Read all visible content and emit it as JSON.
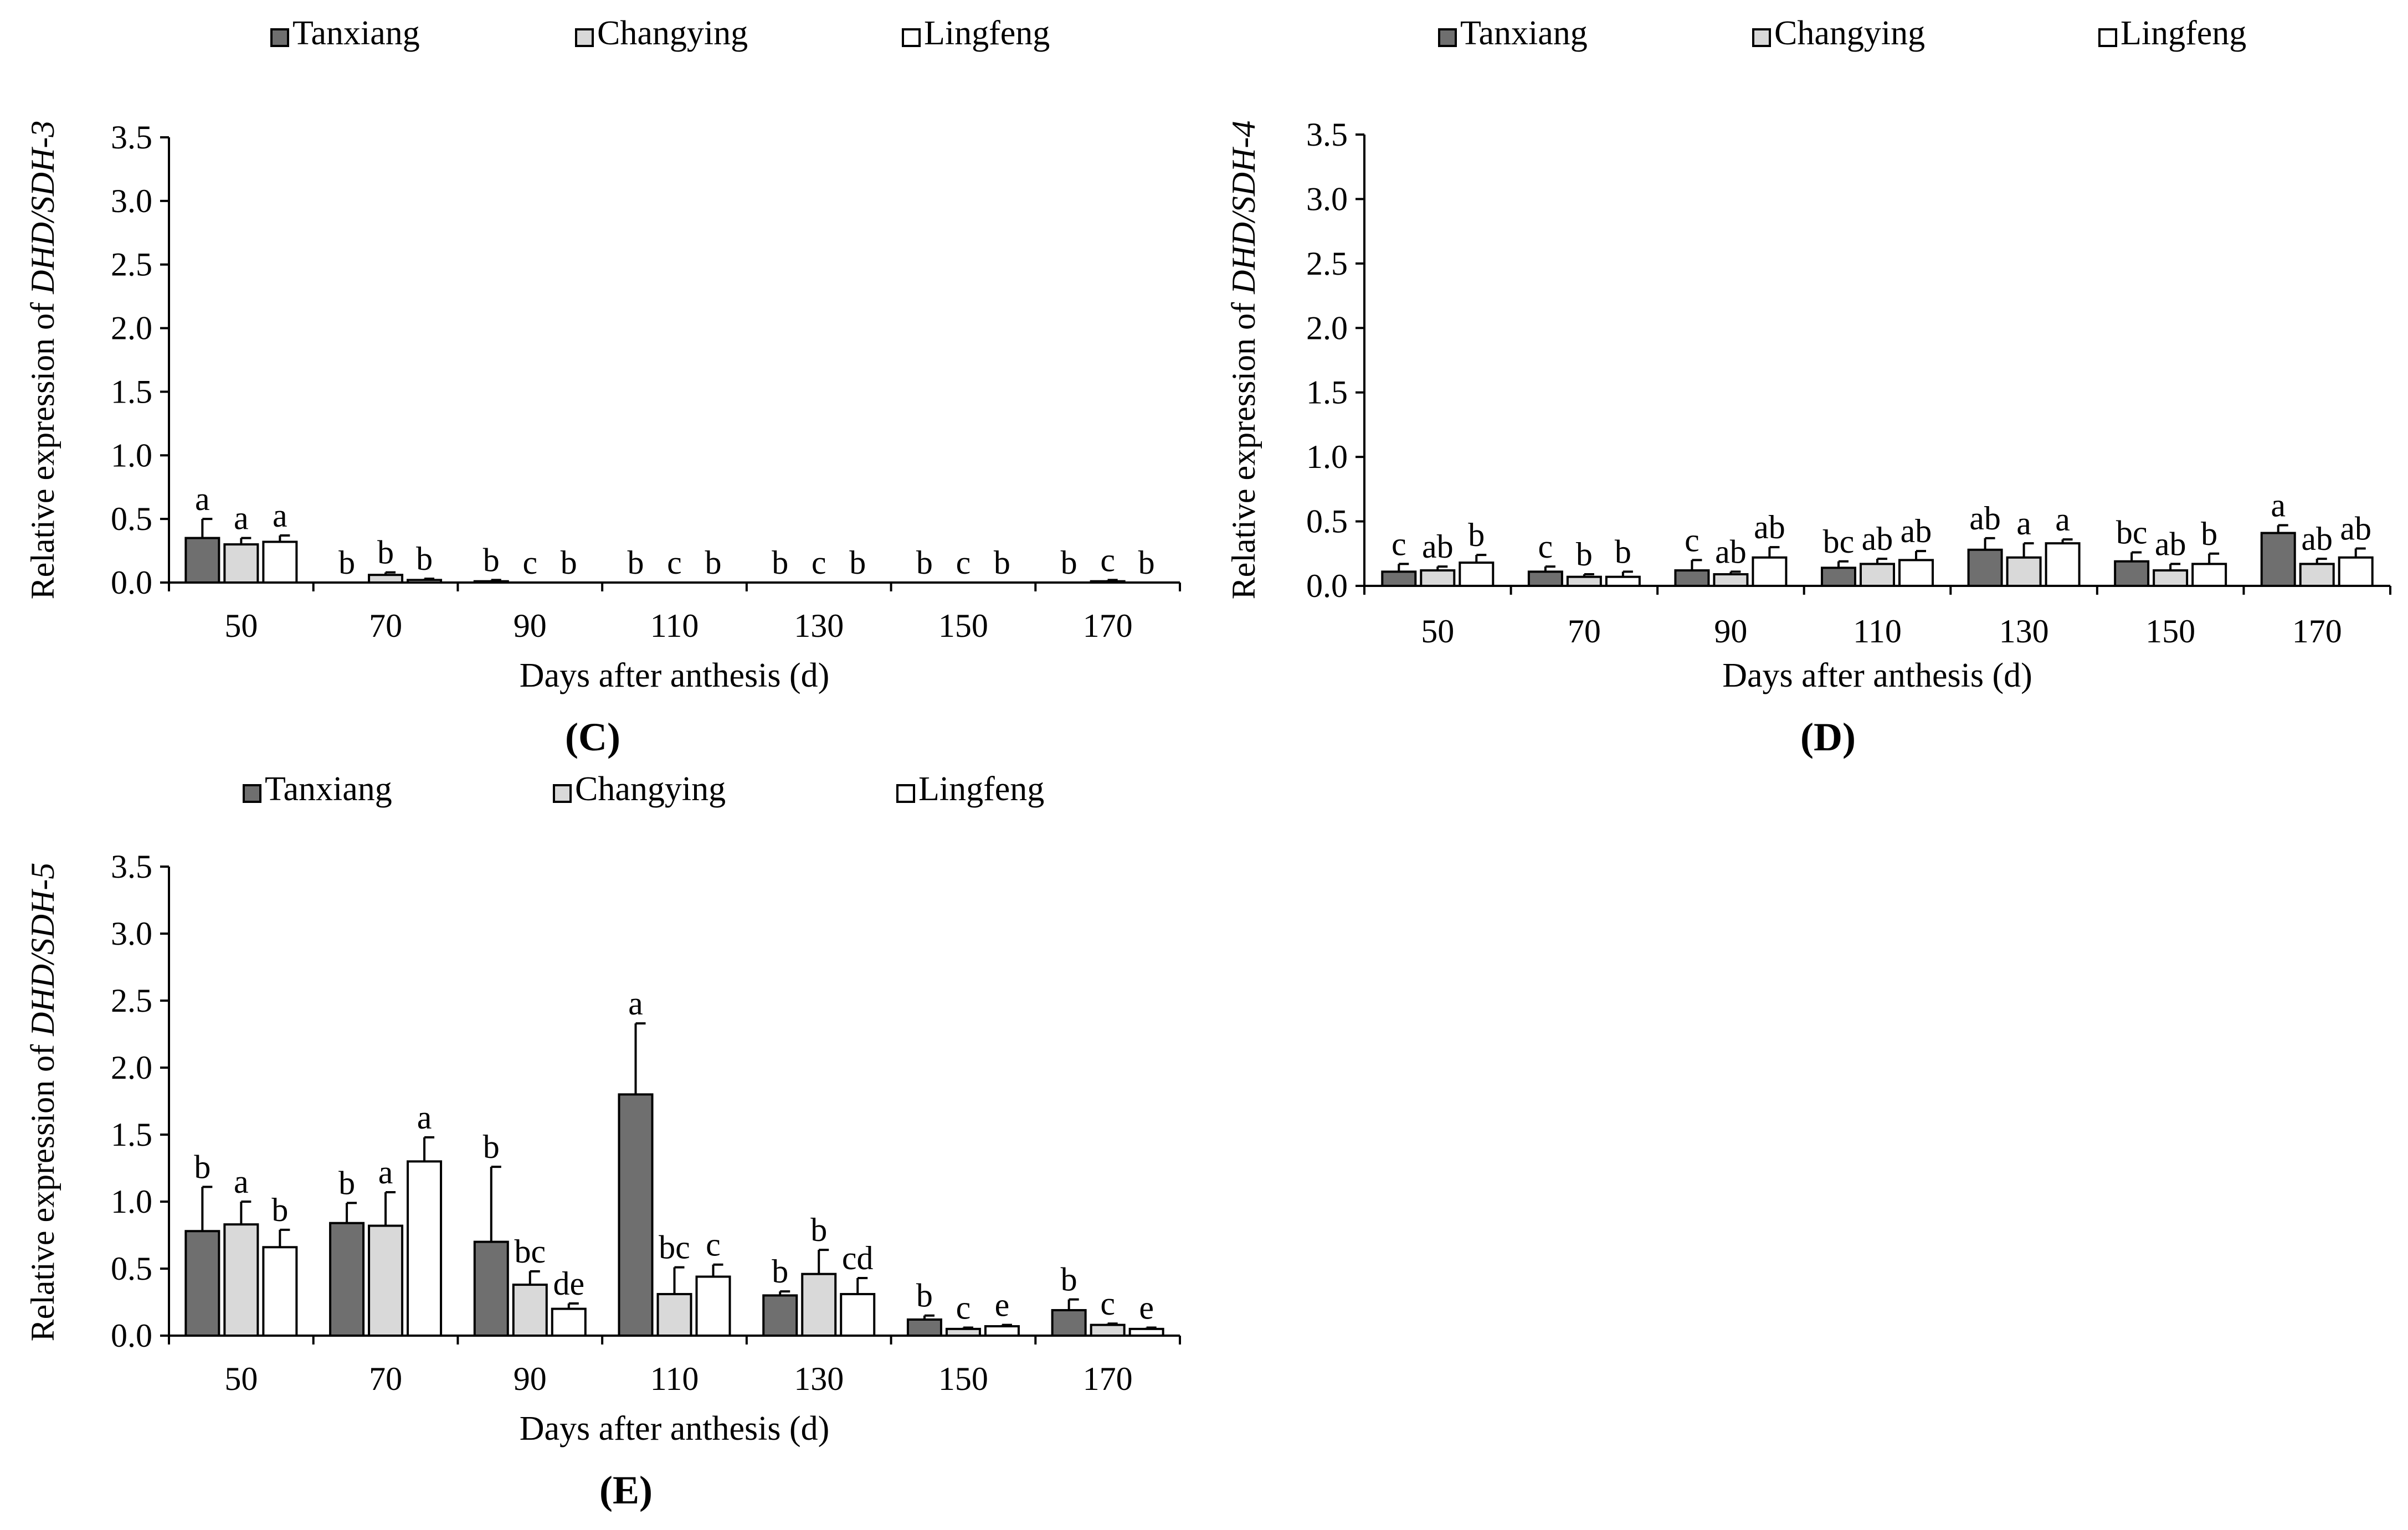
{
  "figure": {
    "colors": {
      "Tanxiang": "#6f6f6f",
      "Changying": "#d9d9d9",
      "Lingfeng": "#ffffff",
      "axis": "#000000"
    }
  },
  "chart_data": [
    {
      "panel": "C",
      "panel_label": "(C)",
      "type": "bar",
      "title": "",
      "ylabel": "Relative expression of ",
      "ylabel_gene": "DHD/SDH-3",
      "xlabel": "Days after anthesis (d)",
      "categories": [
        "50",
        "70",
        "90",
        "110",
        "130",
        "150",
        "170"
      ],
      "ylim": [
        0,
        3.5
      ],
      "yticks": [
        "0.0",
        "0.5",
        "1.0",
        "1.5",
        "2.0",
        "2.5",
        "3.0",
        "3.5"
      ],
      "legend": [
        "Tanxiang",
        "Changying",
        "Lingfeng"
      ],
      "series": [
        {
          "name": "Tanxiang",
          "values": [
            0.35,
            0.0,
            0.01,
            0.0,
            0.0,
            0.0,
            0.0
          ],
          "errors": [
            0.15,
            0.0,
            0.01,
            0.0,
            0.0,
            0.0,
            0.0
          ],
          "letters": [
            "a",
            "b",
            "b",
            "b",
            "b",
            "b",
            "b"
          ]
        },
        {
          "name": "Changying",
          "values": [
            0.3,
            0.06,
            0.0,
            0.0,
            0.0,
            0.0,
            0.01
          ],
          "errors": [
            0.05,
            0.02,
            0.0,
            0.0,
            0.0,
            0.0,
            0.01
          ],
          "letters": [
            "a",
            "b",
            "c",
            "c",
            "c",
            "c",
            "c"
          ]
        },
        {
          "name": "Lingfeng",
          "values": [
            0.32,
            0.02,
            0.0,
            0.0,
            0.0,
            0.0,
            0.0
          ],
          "errors": [
            0.05,
            0.01,
            0.0,
            0.0,
            0.0,
            0.0,
            0.0
          ],
          "letters": [
            "a",
            "b",
            "b",
            "b",
            "b",
            "b",
            "b"
          ]
        }
      ]
    },
    {
      "panel": "D",
      "panel_label": "(D)",
      "type": "bar",
      "title": "",
      "ylabel": "Relative expression of ",
      "ylabel_gene": "DHD/SDH-4",
      "xlabel": "Days after anthesis (d)",
      "categories": [
        "50",
        "70",
        "90",
        "110",
        "130",
        "150",
        "170"
      ],
      "ylim": [
        0,
        3.5
      ],
      "yticks": [
        "0.0",
        "0.5",
        "1.0",
        "1.5",
        "2.0",
        "2.5",
        "3.0",
        "3.5"
      ],
      "legend": [
        "Tanxiang",
        "Changying",
        "Lingfeng"
      ],
      "series": [
        {
          "name": "Tanxiang",
          "values": [
            0.11,
            0.11,
            0.12,
            0.14,
            0.28,
            0.19,
            0.41
          ],
          "errors": [
            0.06,
            0.04,
            0.08,
            0.05,
            0.09,
            0.07,
            0.06
          ],
          "letters": [
            "c",
            "c",
            "c",
            "bc",
            "ab",
            "bc",
            "a"
          ]
        },
        {
          "name": "Changying",
          "values": [
            0.12,
            0.07,
            0.09,
            0.17,
            0.22,
            0.12,
            0.17
          ],
          "errors": [
            0.03,
            0.02,
            0.02,
            0.04,
            0.11,
            0.05,
            0.04
          ],
          "letters": [
            "ab",
            "b",
            "ab",
            "ab",
            "a",
            "ab",
            "ab"
          ]
        },
        {
          "name": "Lingfeng",
          "values": [
            0.18,
            0.07,
            0.22,
            0.2,
            0.33,
            0.17,
            0.22
          ],
          "errors": [
            0.06,
            0.04,
            0.08,
            0.07,
            0.03,
            0.08,
            0.07
          ],
          "letters": [
            "b",
            "b",
            "ab",
            "ab",
            "a",
            "b",
            "ab"
          ]
        }
      ]
    },
    {
      "panel": "E",
      "panel_label": "(E)",
      "type": "bar",
      "title": "",
      "ylabel": "Relative expression of ",
      "ylabel_gene": "DHD/SDH-5",
      "xlabel": "Days after anthesis (d)",
      "categories": [
        "50",
        "70",
        "90",
        "110",
        "130",
        "150",
        "170"
      ],
      "ylim": [
        0,
        3.5
      ],
      "yticks": [
        "0.0",
        "0.5",
        "1.0",
        "1.5",
        "2.0",
        "2.5",
        "3.0",
        "3.5"
      ],
      "legend": [
        "Tanxiang",
        "Changying",
        "Lingfeng"
      ],
      "series": [
        {
          "name": "Tanxiang",
          "values": [
            0.78,
            0.84,
            0.7,
            1.8,
            0.3,
            0.12,
            0.19
          ],
          "errors": [
            0.33,
            0.15,
            0.56,
            0.53,
            0.03,
            0.03,
            0.08
          ],
          "letters": [
            "b",
            "b",
            "b",
            "a",
            "b",
            "b",
            "b"
          ]
        },
        {
          "name": "Changying",
          "values": [
            0.83,
            0.82,
            0.38,
            0.31,
            0.46,
            0.05,
            0.08
          ],
          "errors": [
            0.17,
            0.25,
            0.1,
            0.2,
            0.18,
            0.01,
            0.01
          ],
          "letters": [
            "a",
            "a",
            "bc",
            "bc",
            "b",
            "c",
            "c"
          ]
        },
        {
          "name": "Lingfeng",
          "values": [
            0.66,
            1.3,
            0.2,
            0.44,
            0.31,
            0.07,
            0.05
          ],
          "errors": [
            0.13,
            0.18,
            0.04,
            0.09,
            0.12,
            0.01,
            0.01
          ],
          "letters": [
            "b",
            "a",
            "de",
            "c",
            "cd",
            "e",
            "e"
          ]
        }
      ]
    }
  ]
}
